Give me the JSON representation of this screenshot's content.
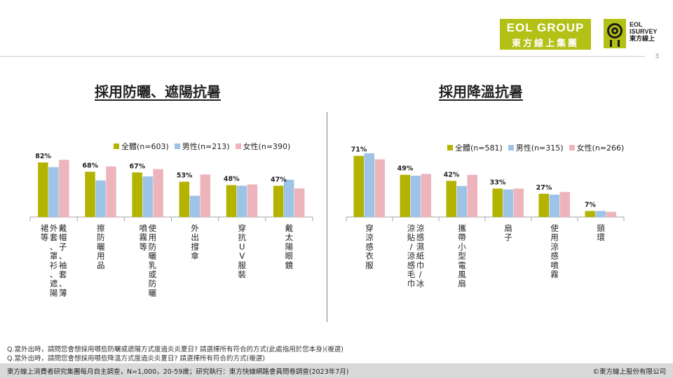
{
  "header": {
    "page_number": "3",
    "logo_eol_line1": "EOL GROUP",
    "logo_eol_line2": "東方線上集團",
    "logo_isurvey_line1": "EOL",
    "logo_isurvey_line2": "ISURVEY",
    "logo_isurvey_line3": "東方線上"
  },
  "colors": {
    "total": "#b3b300",
    "male": "#9dc3e6",
    "female": "#eeb4bb",
    "accent": "#b3c015"
  },
  "chart_data": [
    {
      "type": "bar",
      "title": "採用防曬、遮陽抗暑",
      "categories": [
        "戴帽子、袖套、薄外套、罩衫、遮陽裙等",
        "擦防曬用品",
        "使用防曬乳或防曬噴霧等",
        "外出撐傘",
        "穿抗UV服裝",
        "戴太陽眼鏡"
      ],
      "series": [
        {
          "name": "全體(n=603)",
          "values": [
            82,
            68,
            67,
            53,
            48,
            47
          ]
        },
        {
          "name": "男性(n=213)",
          "values": [
            75,
            55,
            61,
            32,
            47,
            56
          ]
        },
        {
          "name": "女性(n=390)",
          "values": [
            86,
            76,
            72,
            64,
            49,
            43
          ]
        }
      ],
      "data_labels": [
        "82%",
        "68%",
        "67%",
        "53%",
        "48%",
        "47%"
      ],
      "ylim": [
        0,
        100
      ],
      "legend_position": "top"
    },
    {
      "type": "bar",
      "title": "採用降溫抗暑",
      "categories": [
        "穿涼感衣服",
        "涼感濕紙巾/冰涼貼/涼感毛巾",
        "攜帶小型電風扇",
        "扇子",
        "使用涼感噴霧",
        "頸環"
      ],
      "series": [
        {
          "name": "全體(n=581)",
          "values": [
            71,
            49,
            42,
            33,
            27,
            7
          ]
        },
        {
          "name": "男性(n=315)",
          "values": [
            74,
            48,
            36,
            32,
            26,
            7
          ]
        },
        {
          "name": "女性(n=266)",
          "values": [
            67,
            50,
            49,
            33,
            29,
            6
          ]
        }
      ],
      "data_labels": [
        "71%",
        "49%",
        "42%",
        "33%",
        "27%",
        "7%"
      ],
      "ylim": [
        0,
        100
      ],
      "legend_position": "top"
    }
  ],
  "notes": {
    "q1": "Q.當外出時，請問您會想採用哪些防曬或遮陽方式度過炎炎夏日? 請選擇所有符合的方式(此處指用於您本身)(複選)",
    "q2": "Q.當外出時，請問您會想採用哪些降溫方式度過炎炎夏日? 請選擇所有符合的方式(複選)"
  },
  "footer": {
    "source": "東方線上消費者研究集團每月自主調查，N=1,000，20-59歲；研究執行：東方快線網路會員問卷調查(2023年7月)",
    "copyright": "©東方線上股份有限公司"
  }
}
